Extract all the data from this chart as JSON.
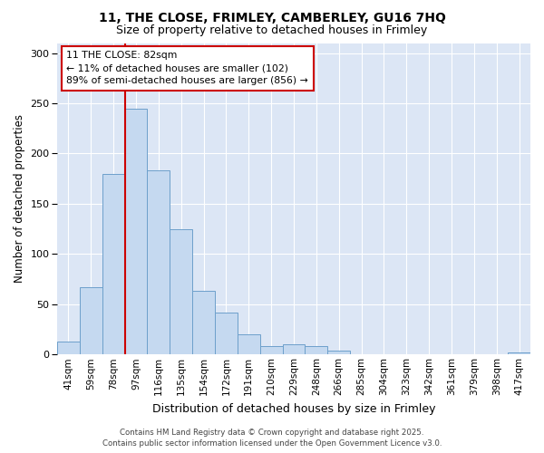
{
  "title_line1": "11, THE CLOSE, FRIMLEY, CAMBERLEY, GU16 7HQ",
  "title_line2": "Size of property relative to detached houses in Frimley",
  "xlabel": "Distribution of detached houses by size in Frimley",
  "ylabel": "Number of detached properties",
  "bar_color": "#c5d9f0",
  "bar_edge_color": "#6da0cb",
  "fig_background": "#ffffff",
  "plot_background": "#dce6f5",
  "grid_color": "#ffffff",
  "vline_color": "#cc0000",
  "annotation_box_color": "#ffffff",
  "annotation_border_color": "#cc0000",
  "annotation_text": "11 THE CLOSE: 82sqm\n← 11% of detached houses are smaller (102)\n89% of semi-detached houses are larger (856) →",
  "footer_text": "Contains HM Land Registry data © Crown copyright and database right 2025.\nContains public sector information licensed under the Open Government Licence v3.0.",
  "categories": [
    "41sqm",
    "59sqm",
    "78sqm",
    "97sqm",
    "116sqm",
    "135sqm",
    "154sqm",
    "172sqm",
    "191sqm",
    "210sqm",
    "229sqm",
    "248sqm",
    "266sqm",
    "285sqm",
    "304sqm",
    "323sqm",
    "342sqm",
    "361sqm",
    "379sqm",
    "398sqm",
    "417sqm"
  ],
  "values": [
    13,
    67,
    180,
    245,
    183,
    125,
    63,
    42,
    20,
    8,
    10,
    8,
    4,
    0,
    0,
    0,
    0,
    0,
    0,
    0,
    2
  ],
  "vline_x": 2.5,
  "ylim": [
    0,
    310
  ],
  "yticks": [
    0,
    50,
    100,
    150,
    200,
    250,
    300
  ]
}
